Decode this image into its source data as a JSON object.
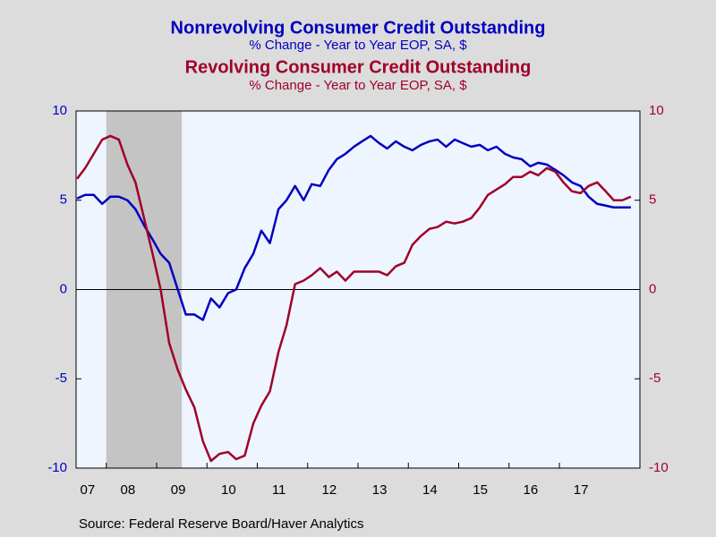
{
  "chart_data": {
    "type": "line",
    "x": [
      2007.42,
      2007.58,
      2007.75,
      2007.92,
      2008.08,
      2008.25,
      2008.42,
      2008.58,
      2008.75,
      2008.92,
      2009.08,
      2009.25,
      2009.42,
      2009.58,
      2009.75,
      2009.92,
      2010.08,
      2010.25,
      2010.42,
      2010.58,
      2010.75,
      2010.92,
      2011.08,
      2011.25,
      2011.42,
      2011.58,
      2011.75,
      2011.92,
      2012.08,
      2012.25,
      2012.42,
      2012.58,
      2012.75,
      2012.92,
      2013.08,
      2013.25,
      2013.42,
      2013.58,
      2013.75,
      2013.92,
      2014.08,
      2014.25,
      2014.42,
      2014.58,
      2014.75,
      2014.92,
      2015.08,
      2015.25,
      2015.42,
      2015.58,
      2015.75,
      2015.92,
      2016.08,
      2016.25,
      2016.42,
      2016.58,
      2016.75,
      2016.92,
      2017.08,
      2017.25,
      2017.42,
      2017.58,
      2017.75,
      2017.92,
      2018.08,
      2018.25,
      2018.42
    ],
    "series": [
      {
        "name": "Nonrevolving Consumer Credit Outstanding",
        "subtitle": "% Change - Year to Year     EOP, SA, $",
        "color": "#0000c0",
        "axis": "y",
        "values": [
          5.1,
          5.3,
          5.3,
          4.8,
          5.2,
          5.2,
          5.0,
          4.5,
          3.6,
          2.8,
          2.0,
          1.5,
          0.0,
          -1.4,
          -1.4,
          -1.7,
          -0.5,
          -1.0,
          -0.2,
          0.0,
          1.2,
          2.0,
          3.3,
          2.6,
          4.5,
          5.0,
          5.8,
          5.0,
          5.9,
          5.8,
          6.7,
          7.3,
          7.6,
          8.0,
          8.3,
          8.6,
          8.2,
          7.9,
          8.3,
          8.0,
          7.8,
          8.1,
          8.3,
          8.4,
          8.0,
          8.4,
          8.2,
          8.0,
          8.1,
          7.8,
          8.0,
          7.6,
          7.4,
          7.3,
          6.9,
          7.1,
          7.0,
          6.7,
          6.4,
          6.0,
          5.8,
          5.2,
          4.8,
          4.7,
          4.6,
          4.6,
          4.6
        ]
      },
      {
        "name": "Revolving Consumer Credit Outstanding",
        "subtitle": "% Change - Year to Year     EOP, SA, $",
        "color": "#a0002a",
        "axis": "y2",
        "values": [
          6.2,
          6.8,
          7.6,
          8.4,
          8.6,
          8.4,
          7.0,
          6.0,
          4.0,
          2.0,
          0.0,
          -3.0,
          -4.5,
          -5.6,
          -6.6,
          -8.5,
          -9.6,
          -9.2,
          -9.1,
          -9.5,
          -9.3,
          -7.5,
          -6.5,
          -5.7,
          -3.5,
          -2.0,
          0.3,
          0.5,
          0.8,
          1.2,
          0.7,
          1.0,
          0.5,
          1.0,
          1.0,
          1.0,
          1.0,
          0.8,
          1.3,
          1.5,
          2.5,
          3.0,
          3.4,
          3.5,
          3.8,
          3.7,
          3.8,
          4.0,
          4.6,
          5.3,
          5.6,
          5.9,
          6.3,
          6.3,
          6.6,
          6.4,
          6.8,
          6.6,
          6.0,
          5.5,
          5.4,
          5.8,
          6.0,
          5.5,
          5.0,
          5.0,
          5.2
        ]
      }
    ],
    "xlim": [
      2007.4,
      2018.6
    ],
    "xticks": [
      {
        "value": 2007,
        "label": "07"
      },
      {
        "value": 2008,
        "label": "08"
      },
      {
        "value": 2009,
        "label": "09"
      },
      {
        "value": 2010,
        "label": "10"
      },
      {
        "value": 2011,
        "label": "11"
      },
      {
        "value": 2012,
        "label": "12"
      },
      {
        "value": 2013,
        "label": "13"
      },
      {
        "value": 2014,
        "label": "14"
      },
      {
        "value": 2015,
        "label": "15"
      },
      {
        "value": 2016,
        "label": "16"
      },
      {
        "value": 2017,
        "label": "17"
      }
    ],
    "ylim": [
      -10,
      10
    ],
    "yticks": [
      -10,
      -5,
      0,
      5,
      10
    ],
    "y2lim": [
      -10,
      10
    ],
    "y2ticks": [
      -10,
      -5,
      0,
      5,
      10
    ],
    "recession": [
      2008.0,
      2009.5
    ],
    "source": "Source:  Federal Reserve Board/Haver Analytics"
  }
}
